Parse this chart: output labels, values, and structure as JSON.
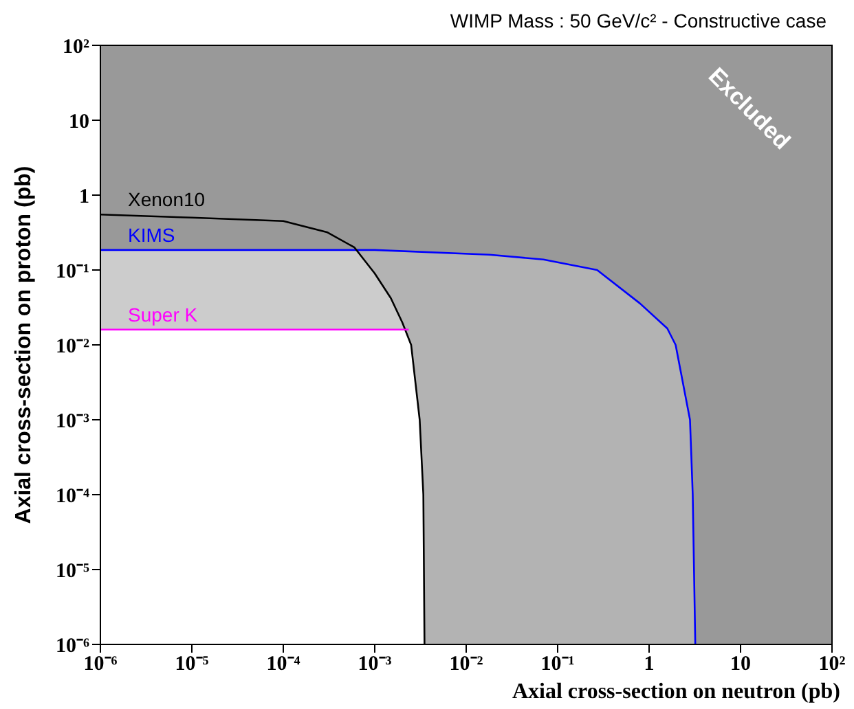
{
  "chart_data": {
    "type": "line",
    "title": "WIMP Mass : 50 GeV/c² - Constructive case",
    "xlabel": "Axial cross-section on neutron (pb)",
    "ylabel": "Axial cross-section on proton (pb)",
    "annotations": [
      "Excluded"
    ],
    "log": "xy",
    "grid": false,
    "legend": "top left",
    "marker": "none",
    "line_style": "solid",
    "xlim": [
      1e-06,
      100
    ],
    "ylim": [
      1e-06,
      100
    ],
    "xticks": [
      {
        "value": 1e-06,
        "label": "10⁻⁶"
      },
      {
        "value": 1e-05,
        "label": "10⁻⁵"
      },
      {
        "value": 0.0001,
        "label": "10⁻⁴"
      },
      {
        "value": 0.001,
        "label": "10⁻³"
      },
      {
        "value": 0.01,
        "label": "10⁻²"
      },
      {
        "value": 0.1,
        "label": "10⁻¹"
      },
      1,
      10,
      {
        "value": 100,
        "label": "10²"
      }
    ],
    "yticks": [
      {
        "value": 1e-06,
        "label": "10⁻⁶"
      },
      {
        "value": 1e-05,
        "label": "10⁻⁵"
      },
      {
        "value": 0.0001,
        "label": "10⁻⁴"
      },
      {
        "value": 0.001,
        "label": "10⁻³"
      },
      {
        "value": 0.01,
        "label": "10⁻²"
      },
      {
        "value": 0.1,
        "label": "10⁻¹"
      },
      1,
      10,
      {
        "value": 100,
        "label": "10²"
      }
    ],
    "series": [
      {
        "name": "KIMS",
        "color": "#0000ff",
        "x": [
          1e-06,
          0.001,
          0.018,
          0.07,
          0.27,
          0.79,
          1.58,
          1.95,
          2.8,
          3.0,
          3.2
        ],
        "values": [
          0.185,
          0.185,
          0.16,
          0.138,
          0.1,
          0.036,
          0.0166,
          0.01,
          0.001,
          0.0001,
          1e-06
        ]
      },
      {
        "name": "Xenon10",
        "color": "#000000",
        "x": [
          1e-06,
          1e-05,
          0.0001,
          0.0003,
          0.0006,
          0.001,
          0.0015,
          0.002,
          0.0025,
          0.0031,
          0.0034,
          0.0035
        ],
        "values": [
          0.55,
          0.5,
          0.45,
          0.32,
          0.2,
          0.09,
          0.042,
          0.02,
          0.01,
          0.001,
          0.0001,
          1e-06
        ]
      },
      {
        "name": "Super K",
        "color": "#ff00ff",
        "x": [
          1e-06,
          0.00235
        ],
        "values": [
          0.016,
          0.016
        ]
      }
    ]
  }
}
